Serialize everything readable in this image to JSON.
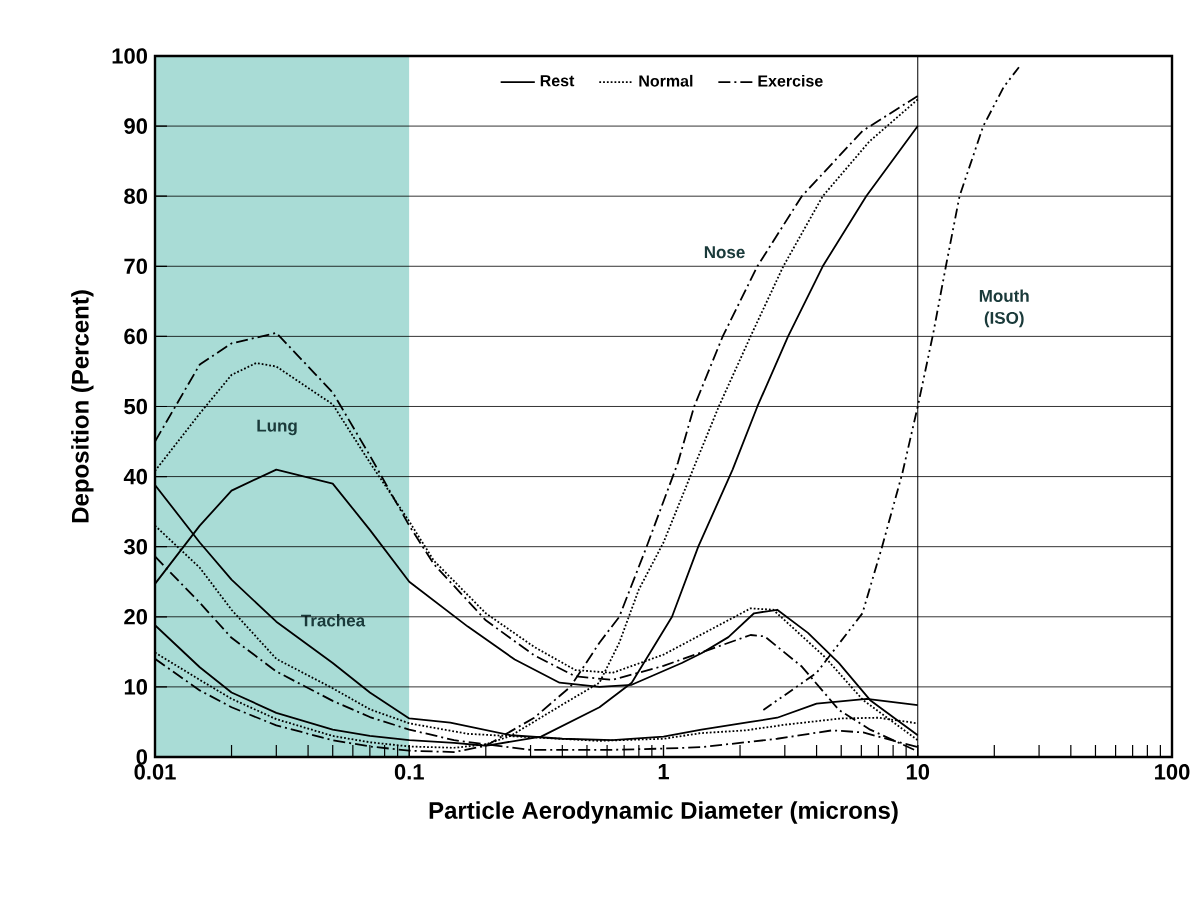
{
  "chart_data": {
    "type": "line",
    "xlabel": "Particle Aerodynamic Diameter (microns)",
    "ylabel": "Deposition (Percent)",
    "log": "x",
    "xlim": [
      0.01,
      100
    ],
    "xticks": [
      0.01,
      0.1,
      1,
      10,
      100
    ],
    "ylim": [
      0,
      100
    ],
    "yticks": [
      0,
      10,
      20,
      30,
      40,
      50,
      60,
      70,
      80,
      90,
      100
    ],
    "grid": "y",
    "legend": "top",
    "marker": "none",
    "bands": [
      {
        "axis": "x",
        "from": 0.01,
        "to": 0.1,
        "color": "#a9dcd6"
      }
    ],
    "ref_lines": [
      {
        "axis": "x",
        "value": 10,
        "color": "#000000"
      }
    ],
    "annotations": [
      "Lung",
      "Trachea",
      "Nose",
      "Mouth (ISO)"
    ],
    "series": [
      {
        "name": "Rest",
        "color": "#000000",
        "line_style": "solid",
        "x": [
          0.01,
          0.015,
          0.02,
          0.03,
          0.05,
          0.07,
          0.1,
          0.17,
          0.26,
          0.39,
          0.56,
          0.75,
          1.18,
          1.41,
          1.8,
          2.27,
          2.8,
          3.7,
          4.9,
          6.5,
          10
        ],
        "values": [
          24.7,
          33,
          38,
          41,
          39,
          32.4,
          25,
          18.6,
          13.9,
          10.6,
          10,
          10.3,
          13.4,
          14.8,
          17.1,
          20.5,
          21,
          17.7,
          13.4,
          8.1,
          3.1
        ]
      },
      {
        "name": "Normal",
        "color": "#000000",
        "line_style": "dotted",
        "x": [
          0.01,
          0.015,
          0.02,
          0.025,
          0.03,
          0.05,
          0.07,
          0.1,
          0.125,
          0.2,
          0.31,
          0.45,
          0.63,
          1,
          2.2,
          2.7,
          4.3,
          6.1,
          10
        ],
        "values": [
          40.8,
          49,
          54.5,
          56.2,
          55.7,
          50.3,
          42,
          33.6,
          28,
          20.5,
          15.7,
          12.4,
          12,
          14.6,
          21.2,
          21,
          14.3,
          8.1,
          2.4
        ]
      },
      {
        "name": "Exercise",
        "color": "#000000",
        "line_style": "dashdot",
        "x": [
          0.01,
          0.015,
          0.02,
          0.03,
          0.05,
          0.07,
          0.1,
          0.125,
          0.2,
          0.31,
          0.45,
          0.63,
          1,
          2.2,
          2.5,
          3.5,
          4.9,
          6.5,
          10
        ],
        "values": [
          45,
          56,
          59,
          60.5,
          52,
          43,
          33,
          27.5,
          19.5,
          14.5,
          11.5,
          11,
          13,
          17.4,
          17.2,
          12.9,
          6.7,
          3.9,
          0.8
        ]
      },
      {
        "color": "#000000",
        "line_style": "solid",
        "x": [
          0.01,
          0.015,
          0.02,
          0.03,
          0.05,
          0.07,
          0.1,
          0.145,
          0.25,
          0.4,
          0.63,
          1,
          1.41,
          2.2,
          2.8,
          4,
          6.3,
          10
        ],
        "values": [
          38.8,
          30.6,
          25.3,
          19.3,
          13.4,
          9.2,
          5.5,
          4.9,
          3.1,
          2.6,
          2.4,
          2.9,
          3.9,
          5,
          5.6,
          7.6,
          8.3,
          7.4
        ]
      },
      {
        "color": "#000000",
        "line_style": "dotted",
        "x": [
          0.01,
          0.015,
          0.02,
          0.03,
          0.05,
          0.07,
          0.1,
          0.17,
          0.56,
          1,
          1.4,
          2.1,
          3,
          5,
          7,
          10
        ],
        "values": [
          33,
          27,
          21,
          14,
          9.8,
          6.8,
          4.8,
          3.3,
          2.3,
          2.6,
          3.4,
          3.8,
          4.6,
          5.5,
          5.6,
          4.8
        ]
      },
      {
        "color": "#000000",
        "line_style": "dashdot",
        "x": [
          0.01,
          0.015,
          0.02,
          0.03,
          0.05,
          0.07,
          0.1,
          0.15,
          0.3,
          0.6,
          1,
          1.41,
          2.8,
          4.6,
          6.1,
          10
        ],
        "values": [
          28.6,
          22,
          17,
          12.2,
          8,
          5.7,
          3.9,
          2.4,
          1,
          1,
          1.2,
          1.4,
          2.6,
          3.8,
          3.5,
          1.4
        ]
      },
      {
        "color": "#000000",
        "line_style": "solid",
        "x": [
          0.01,
          0.015,
          0.02,
          0.03,
          0.05,
          0.07,
          0.1,
          0.15,
          0.2,
          0.33,
          0.56,
          0.75,
          1.08,
          1.37,
          1.87,
          2.34,
          3.09,
          4.23,
          6.27,
          10
        ],
        "values": [
          18.8,
          12.8,
          9.2,
          6.3,
          3.9,
          3,
          2.4,
          2,
          1.6,
          2.9,
          7.1,
          10.6,
          20,
          30,
          41,
          50,
          60,
          70,
          80,
          90
        ]
      },
      {
        "color": "#000000",
        "line_style": "dotted",
        "x": [
          0.01,
          0.015,
          0.02,
          0.03,
          0.05,
          0.07,
          0.1,
          0.15,
          0.2,
          0.25,
          0.41,
          0.56,
          0.67,
          0.8,
          1,
          1.34,
          1.65,
          2.2,
          2.96,
          4.23,
          6.45,
          10
        ],
        "values": [
          14.9,
          11,
          8.3,
          5.4,
          3,
          2.1,
          1.5,
          1.3,
          1.8,
          3,
          7.7,
          10.6,
          16.3,
          23.9,
          30.6,
          42,
          50,
          60,
          70,
          80,
          87.8,
          93.8
        ]
      },
      {
        "color": "#000000",
        "line_style": "dashdot",
        "x": [
          0.01,
          0.015,
          0.02,
          0.03,
          0.05,
          0.07,
          0.1,
          0.15,
          0.2,
          0.31,
          0.43,
          0.56,
          0.67,
          0.85,
          1.14,
          1.32,
          1.71,
          2.34,
          3.5,
          6.06,
          10
        ],
        "values": [
          14,
          9.5,
          7.1,
          4.5,
          2.4,
          1.5,
          0.9,
          0.7,
          1.6,
          5.6,
          10,
          16.3,
          20,
          29.6,
          42,
          50,
          60,
          70,
          80,
          89.3,
          94.3
        ]
      },
      {
        "color": "#000000",
        "line_style": "dashdotdot",
        "x": [
          2.47,
          4,
          6.06,
          7.24,
          8.7,
          10,
          11.5,
          12.9,
          14.6,
          18.1,
          21.8,
          25
        ],
        "values": [
          6.7,
          12,
          20.5,
          30,
          40.5,
          50,
          60.4,
          70,
          80,
          90,
          95.6,
          98.4
        ]
      }
    ]
  }
}
